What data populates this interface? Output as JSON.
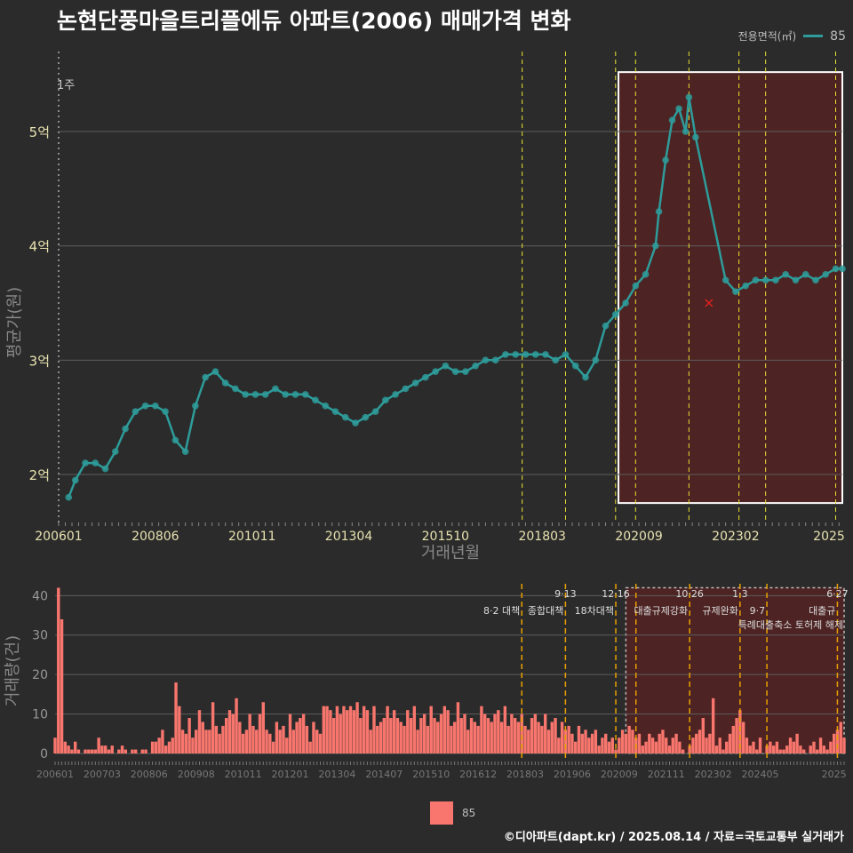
{
  "title": "논현단풍마을트리플에듀 아파트(2006) 매매가격 변화",
  "legend_top": {
    "label": "전용면적(㎡)",
    "value": "85"
  },
  "legend_bottom": {
    "value": "85"
  },
  "footer": "©디아파트(dapt.kr) / 2025.08.14 / 자료=국토교통부 실거래가",
  "colors": {
    "line": "#2e9c9a",
    "bar": "#f8766d",
    "policy_line": "#e8e030",
    "policy_line_bottom": "#e8a000",
    "highlight": "#5a2222"
  },
  "chart_data": [
    {
      "type": "line",
      "title": "",
      "xlabel": "거래년월",
      "ylabel": "평균가(원)",
      "x_ticks": [
        "200601",
        "200806",
        "201011",
        "201304",
        "201510",
        "201803",
        "202009",
        "202302",
        "2025"
      ],
      "y_ticks": [
        "2억",
        "3억",
        "4억",
        "5억"
      ],
      "ylim": [
        1.58,
        5.7
      ],
      "xlim": [
        "2006-01",
        "2025-08"
      ],
      "grid": true,
      "annotation_left": "1주",
      "highlight_range": [
        "2020-03",
        "2025-08"
      ],
      "policy_dates": [
        "2017-08",
        "2018-09",
        "2019-12",
        "2020-06",
        "2021-10",
        "2023-01",
        "2023-09",
        "2025-06"
      ],
      "outlier_marker": {
        "x": "2022-04",
        "y": 3.5
      },
      "series": [
        {
          "name": "85",
          "x": [
            "2006-04",
            "2006-06",
            "2006-09",
            "2006-12",
            "2007-03",
            "2007-06",
            "2007-09",
            "2007-12",
            "2008-03",
            "2008-06",
            "2008-09",
            "2008-12",
            "2009-03",
            "2009-06",
            "2009-09",
            "2009-12",
            "2010-03",
            "2010-06",
            "2010-09",
            "2010-12",
            "2011-03",
            "2011-06",
            "2011-09",
            "2011-12",
            "2012-03",
            "2012-06",
            "2012-09",
            "2012-12",
            "2013-03",
            "2013-06",
            "2013-09",
            "2013-12",
            "2014-03",
            "2014-06",
            "2014-09",
            "2014-12",
            "2015-03",
            "2015-06",
            "2015-09",
            "2015-12",
            "2016-03",
            "2016-06",
            "2016-09",
            "2016-12",
            "2017-03",
            "2017-06",
            "2017-09",
            "2017-12",
            "2018-03",
            "2018-06",
            "2018-09",
            "2018-12",
            "2019-03",
            "2019-06",
            "2019-09",
            "2019-12",
            "2020-03",
            "2020-06",
            "2020-09",
            "2020-12",
            "2021-01",
            "2021-03",
            "2021-05",
            "2021-07",
            "2021-09",
            "2021-10",
            "2021-12",
            "2022-09",
            "2022-12",
            "2023-03",
            "2023-06",
            "2023-09",
            "2023-12",
            "2024-03",
            "2024-06",
            "2024-09",
            "2024-12",
            "2025-03",
            "2025-06",
            "2025-08"
          ],
          "y": [
            1.8,
            1.95,
            2.1,
            2.1,
            2.05,
            2.2,
            2.4,
            2.55,
            2.6,
            2.6,
            2.55,
            2.3,
            2.2,
            2.6,
            2.85,
            2.9,
            2.8,
            2.75,
            2.7,
            2.7,
            2.7,
            2.75,
            2.7,
            2.7,
            2.7,
            2.65,
            2.6,
            2.55,
            2.5,
            2.45,
            2.5,
            2.55,
            2.65,
            2.7,
            2.75,
            2.8,
            2.85,
            2.9,
            2.95,
            2.9,
            2.9,
            2.95,
            3.0,
            3.0,
            3.05,
            3.05,
            3.05,
            3.05,
            3.05,
            3.0,
            3.05,
            2.95,
            2.85,
            3.0,
            3.3,
            3.4,
            3.5,
            3.65,
            3.75,
            4.0,
            4.3,
            4.75,
            5.1,
            5.2,
            5.0,
            5.3,
            4.95,
            3.7,
            3.6,
            3.65,
            3.7,
            3.7,
            3.7,
            3.75,
            3.7,
            3.75,
            3.7,
            3.75,
            3.8,
            3.8
          ]
        }
      ]
    },
    {
      "type": "bar",
      "title": "",
      "xlabel": "",
      "ylabel": "거래량(건)",
      "x_ticks": [
        "200601",
        "200703",
        "200806",
        "200908",
        "201011",
        "201201",
        "201304",
        "201407",
        "201510",
        "201612",
        "201803",
        "201906",
        "202009",
        "202111",
        "202302",
        "202405",
        "2025"
      ],
      "y_ticks": [
        "0",
        "10",
        "20",
        "30",
        "40"
      ],
      "ylim": [
        0,
        43
      ],
      "highlight_range": [
        "2020-03",
        "2025-08"
      ],
      "policies": [
        {
          "date": "2017-08",
          "label1": "",
          "label2": "8·2 대책"
        },
        {
          "date": "2018-09",
          "label1": "9·13",
          "label2": "종합대책"
        },
        {
          "date": "2019-12",
          "label1": "12·16",
          "label2": "18차대책"
        },
        {
          "date": "2020-06",
          "label1": "",
          "label2": ""
        },
        {
          "date": "2021-10",
          "label1": "10·26",
          "label2": "대출규제강화"
        },
        {
          "date": "2023-01",
          "label1": "1·3",
          "label2": "규제완화"
        },
        {
          "date": "2023-09",
          "label1": "",
          "label2": "9·7"
        },
        {
          "date": "2025-06",
          "label1": "6·27",
          "label2": "대출규"
        }
      ],
      "extra_policy_labels": [
        "특례대출축소 토허제 해제"
      ],
      "monthly_volume": [
        4,
        42,
        34,
        3,
        2,
        1,
        3,
        1,
        0,
        1,
        1,
        1,
        1,
        4,
        2,
        2,
        1,
        2,
        0,
        1,
        2,
        1,
        0,
        1,
        1,
        0,
        1,
        1,
        0,
        3,
        3,
        4,
        6,
        2,
        3,
        4,
        18,
        12,
        6,
        5,
        9,
        4,
        6,
        11,
        8,
        6,
        6,
        13,
        7,
        5,
        7,
        9,
        11,
        10,
        14,
        8,
        5,
        6,
        10,
        7,
        6,
        10,
        13,
        6,
        5,
        3,
        8,
        6,
        7,
        4,
        10,
        6,
        8,
        9,
        10,
        7,
        3,
        8,
        6,
        5,
        12,
        12,
        11,
        9,
        12,
        10,
        12,
        11,
        12,
        11,
        13,
        9,
        12,
        11,
        6,
        12,
        7,
        8,
        9,
        12,
        9,
        11,
        9,
        8,
        7,
        11,
        9,
        12,
        6,
        9,
        10,
        7,
        12,
        9,
        8,
        10,
        12,
        11,
        7,
        8,
        13,
        9,
        10,
        6,
        9,
        8,
        7,
        12,
        10,
        9,
        8,
        10,
        11,
        8,
        12,
        7,
        10,
        9,
        8,
        10,
        7,
        6,
        9,
        10,
        8,
        7,
        10,
        6,
        8,
        9,
        4,
        8,
        6,
        7,
        5,
        3,
        7,
        5,
        6,
        4,
        5,
        6,
        2,
        4,
        5,
        3,
        4,
        1,
        4,
        6,
        5,
        7,
        6,
        4,
        5,
        2,
        3,
        5,
        4,
        3,
        5,
        6,
        4,
        2,
        4,
        5,
        3,
        1,
        0,
        2,
        4,
        5,
        6,
        9,
        4,
        5,
        14,
        2,
        4,
        1,
        3,
        5,
        7,
        9,
        11,
        8,
        4,
        2,
        3,
        1,
        4,
        0,
        2,
        3,
        2,
        3,
        1,
        1,
        2,
        4,
        3,
        5,
        2,
        1,
        0,
        2,
        3,
        1,
        4,
        2,
        1,
        3,
        5,
        6,
        8,
        4,
        5,
        7,
        3,
        4,
        2,
        5,
        3,
        4,
        6,
        5,
        3,
        4,
        2,
        5,
        3,
        4,
        5,
        3,
        6,
        4,
        5,
        3,
        4,
        5,
        6,
        4,
        3,
        5,
        6,
        4,
        5
      ]
    }
  ]
}
